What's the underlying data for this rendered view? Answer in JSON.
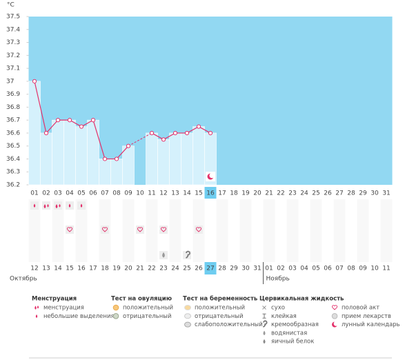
{
  "chart_data": {
    "type": "line",
    "y_label": "°C",
    "categories": [
      "01",
      "02",
      "03",
      "04",
      "05",
      "06",
      "07",
      "08",
      "09",
      "10",
      "11",
      "12",
      "13",
      "14",
      "15",
      "16",
      "17",
      "18",
      "19",
      "20",
      "21",
      "22",
      "23",
      "24",
      "25",
      "26",
      "27",
      "28",
      "29",
      "30",
      "31"
    ],
    "series": [
      {
        "name": "temperature",
        "color": "#e3306a",
        "bar_color": "#d5f1fc",
        "values": [
          37.0,
          36.6,
          36.7,
          36.7,
          36.65,
          36.7,
          36.4,
          36.4,
          36.5,
          null,
          36.6,
          36.55,
          36.6,
          36.6,
          36.65,
          36.6,
          null,
          null,
          null,
          null,
          null,
          null,
          null,
          null,
          null,
          null,
          null,
          null,
          null,
          null,
          null
        ]
      }
    ],
    "background_color": "#92d8f2",
    "ylim": [
      36.2,
      37.5
    ],
    "yticks": [
      36.2,
      36.3,
      36.4,
      36.5,
      36.6,
      36.7,
      36.8,
      36.9,
      37,
      37.1,
      37.2,
      37.3,
      37.4,
      37.5
    ],
    "grid": false,
    "cycle_dates": [
      {
        "text": "12",
        "color": "#333"
      },
      {
        "text": "13",
        "color": "#e0245e"
      },
      {
        "text": "14",
        "color": "#e0245e"
      },
      {
        "text": "15",
        "color": "#333"
      },
      {
        "text": "16",
        "color": "#333"
      },
      {
        "text": "17",
        "color": "#333"
      },
      {
        "text": "18",
        "color": "#333"
      },
      {
        "text": "19",
        "color": "#333"
      },
      {
        "text": "20",
        "color": "#e0245e"
      },
      {
        "text": "21",
        "color": "#e0245e"
      },
      {
        "text": "22",
        "color": "#333"
      },
      {
        "text": "23",
        "color": "#333"
      },
      {
        "text": "24",
        "color": "#333"
      },
      {
        "text": "25",
        "color": "#333"
      },
      {
        "text": "26",
        "color": "#333"
      },
      {
        "text": "27",
        "color": "#ffffff"
      },
      {
        "text": "28",
        "color": "#e0245e"
      },
      {
        "text": "29",
        "color": "#333"
      },
      {
        "text": "30",
        "color": "#333"
      },
      {
        "text": "31",
        "color": "#333"
      },
      {
        "text": "01",
        "color": "#333"
      },
      {
        "text": "02",
        "color": "#333"
      },
      {
        "text": "03",
        "color": "#e0245e"
      },
      {
        "text": "04",
        "color": "#e0245e"
      },
      {
        "text": "05",
        "color": "#333"
      },
      {
        "text": "06",
        "color": "#333"
      },
      {
        "text": "07",
        "color": "#333"
      },
      {
        "text": "08",
        "color": "#333"
      },
      {
        "text": "09",
        "color": "#333"
      },
      {
        "text": "10",
        "color": "#e0245e"
      },
      {
        "text": "11",
        "color": "#e0245e"
      }
    ],
    "months": [
      "Октябрь",
      "Ноябрь"
    ],
    "legend": [
      {
        "title": "Менструация",
        "items": [
          "менструация",
          "небольшие выделения"
        ]
      },
      {
        "title": "Тест на овуляцию",
        "items": [
          "положительный",
          "отрицательный"
        ]
      },
      {
        "title": "Тест на беременность",
        "items": [
          "положительный",
          "отрицательный",
          "слабоположительный"
        ]
      },
      {
        "title": "Цервикальная жидкость",
        "items": [
          "сухо",
          "клейкая",
          "кремообразная",
          "водянистая",
          "яичный белок"
        ]
      },
      {
        "items": [
          "половой акт",
          "прием лекарств",
          "лунный календарь"
        ]
      }
    ]
  }
}
